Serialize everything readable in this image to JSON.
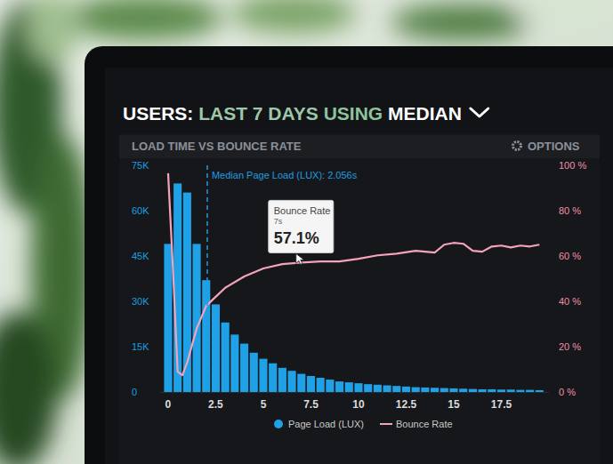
{
  "chart_data": {
    "type": "bar",
    "title_parts": [
      "USERS:",
      "LAST 7 DAYS",
      "USING",
      "MEDIAN"
    ],
    "subtitle": "LOAD TIME VS BOUNCE RATE",
    "options_label": "OPTIONS",
    "xlim": [
      -0.4,
      20
    ],
    "xticks": [
      0,
      2.5,
      5,
      7.5,
      10,
      12.5,
      15,
      17.5
    ],
    "ylim": [
      0,
      75000
    ],
    "yticks": [
      0,
      {
        "value": 15000,
        "label": "15K"
      },
      {
        "value": 30000,
        "label": "30K"
      },
      {
        "value": 45000,
        "label": "45K"
      },
      {
        "value": 60000,
        "label": "60K"
      },
      {
        "value": 75000,
        "label": "75K"
      }
    ],
    "y2lim": [
      0,
      100
    ],
    "y2ticks": [
      {
        "value": 0,
        "label": "0 %"
      },
      {
        "value": 20,
        "label": "20 %"
      },
      {
        "value": 40,
        "label": "40 %"
      },
      {
        "value": 60,
        "label": "60 %"
      },
      {
        "value": 80,
        "label": "80 %"
      },
      {
        "value": 100,
        "label": "100 %"
      }
    ],
    "legend": "bottom",
    "series": [
      {
        "name": "Page Load (LUX)",
        "type": "bar",
        "color": "#1ea1e6",
        "x": [
          0,
          0.5,
          1,
          1.5,
          2,
          2.5,
          3,
          3.5,
          4,
          4.5,
          5,
          5.5,
          6,
          6.5,
          7,
          7.5,
          8,
          8.5,
          9,
          9.5,
          10,
          10.5,
          11,
          11.5,
          12,
          12.5,
          13,
          13.5,
          14,
          14.5,
          15,
          15.5,
          16,
          16.5,
          17,
          17.5,
          18,
          18.5,
          19,
          19.5
        ],
        "values": [
          49000,
          69000,
          66000,
          49000,
          37000,
          29000,
          23000,
          19000,
          16000,
          13000,
          11000,
          9500,
          8000,
          7000,
          6000,
          5300,
          4700,
          4100,
          3500,
          3200,
          2900,
          2600,
          2400,
          2200,
          2000,
          1800,
          1600,
          1500,
          1400,
          1300,
          1200,
          1100,
          1000,
          900,
          900,
          800,
          800,
          700,
          700,
          600
        ]
      },
      {
        "name": "Bounce Rate",
        "type": "line",
        "color": "#f4a3bb",
        "axis": "y2",
        "x": [
          0,
          0.25,
          0.5,
          0.75,
          1,
          1.5,
          2,
          2.5,
          3,
          4,
          5,
          6,
          7,
          8,
          9,
          10,
          11,
          12,
          13,
          14,
          14.5,
          15,
          15.5,
          16,
          16.5,
          17,
          17.5,
          18,
          18.5,
          19,
          19.5
        ],
        "values": [
          96.5,
          55,
          9,
          7.4,
          13,
          28,
          38,
          42,
          46,
          51,
          54.5,
          56.4,
          57.1,
          57.6,
          57.6,
          58.8,
          60.3,
          61,
          62.3,
          61.5,
          65,
          65.8,
          65.4,
          62.3,
          61.9,
          64.2,
          64.6,
          63.8,
          64.6,
          64.2,
          65
        ]
      }
    ],
    "annotations": [
      {
        "text": "Median Page Load (LUX): 2.056s",
        "x": 2.056,
        "line_style": "dashed"
      }
    ],
    "tooltip": {
      "title": "Bounce Rate",
      "x_label": "7s",
      "value_label": "57.1%",
      "x": 7,
      "value": 57.1
    }
  }
}
